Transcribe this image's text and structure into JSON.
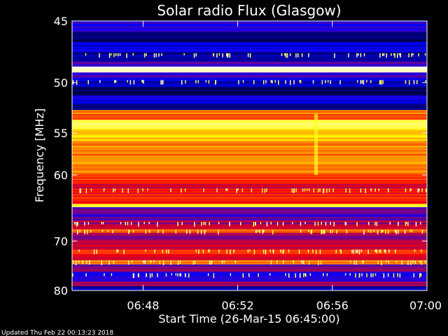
{
  "chart_data": {
    "type": "heatmap",
    "title": "Solar radio Flux (Glasgow)",
    "xlabel": "Start Time (26-Mar-15 06:45:00)",
    "ylabel": "Frequency [MHz]",
    "x_ticks": [
      "06:48",
      "06:52",
      "06:56",
      "07:00"
    ],
    "x_tick_minutes": [
      3,
      7,
      11,
      15
    ],
    "xlim_minutes": [
      0,
      15
    ],
    "y_ticks": [
      45,
      50,
      55,
      60,
      70,
      80
    ],
    "ylim": [
      45,
      80
    ],
    "y_scale": "reciprocal",
    "colormap": [
      "#000000",
      "#0000ff",
      "#ff0000",
      "#ffff00",
      "#ffffff"
    ],
    "bands": [
      {
        "from": 45.0,
        "to": 45.8,
        "level": 0.28
      },
      {
        "from": 45.8,
        "to": 46.6,
        "level": 0.1
      },
      {
        "from": 46.6,
        "to": 47.4,
        "level": 0.22
      },
      {
        "from": 47.4,
        "to": 48.2,
        "level": 0.14
      },
      {
        "from": 48.2,
        "to": 48.6,
        "level": 0.32
      },
      {
        "from": 48.6,
        "to": 49.1,
        "level": 0.97
      },
      {
        "from": 49.1,
        "to": 49.6,
        "level": 0.3
      },
      {
        "from": 49.6,
        "to": 50.4,
        "level": 0.2
      },
      {
        "from": 50.4,
        "to": 51.2,
        "level": 0.1
      },
      {
        "from": 51.2,
        "to": 52.0,
        "level": 0.24
      },
      {
        "from": 52.0,
        "to": 52.6,
        "level": 0.14
      },
      {
        "from": 52.6,
        "to": 53.0,
        "level": 0.62
      },
      {
        "from": 53.0,
        "to": 53.6,
        "level": 0.55
      },
      {
        "from": 53.6,
        "to": 54.6,
        "level": 0.82
      },
      {
        "from": 54.6,
        "to": 56.0,
        "level": 0.7
      },
      {
        "from": 56.0,
        "to": 57.4,
        "level": 0.64
      },
      {
        "from": 57.4,
        "to": 58.4,
        "level": 0.6
      },
      {
        "from": 58.4,
        "to": 59.8,
        "level": 0.66
      },
      {
        "from": 59.8,
        "to": 61.0,
        "level": 0.55
      },
      {
        "from": 61.0,
        "to": 62.4,
        "level": 0.48
      },
      {
        "from": 62.4,
        "to": 64.0,
        "level": 0.52
      },
      {
        "from": 64.0,
        "to": 64.5,
        "level": 0.8
      },
      {
        "from": 64.5,
        "to": 66.5,
        "level": 0.34
      },
      {
        "from": 66.5,
        "to": 68.0,
        "level": 0.4
      },
      {
        "from": 68.0,
        "to": 68.6,
        "level": 0.6
      },
      {
        "from": 68.6,
        "to": 70.0,
        "level": 0.38
      },
      {
        "from": 70.0,
        "to": 71.6,
        "level": 0.44
      },
      {
        "from": 71.6,
        "to": 72.4,
        "level": 0.58
      },
      {
        "from": 72.4,
        "to": 73.6,
        "level": 0.42
      },
      {
        "from": 73.6,
        "to": 74.4,
        "level": 0.62
      },
      {
        "from": 74.4,
        "to": 76.0,
        "level": 0.36
      },
      {
        "from": 76.0,
        "to": 78.0,
        "level": 0.28
      },
      {
        "from": 78.0,
        "to": 79.0,
        "level": 0.4
      },
      {
        "from": 79.0,
        "to": 80.0,
        "level": 0.2
      }
    ]
  },
  "footer": {
    "updated": "Updated Thu Feb 22 00:13:23 2018"
  }
}
